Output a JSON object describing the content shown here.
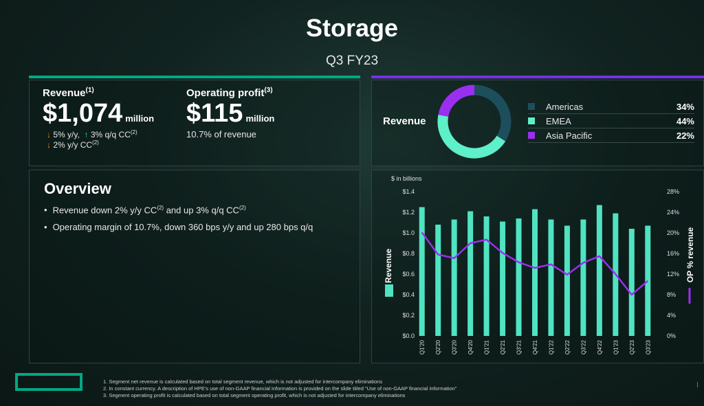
{
  "title": "Storage",
  "subtitle": "Q3 FY23",
  "revenue": {
    "label": "Revenue",
    "label_sup": "(1)",
    "value": "$1,074",
    "unit": "million",
    "delta_yy": "5% y/y,",
    "delta_qq": "3% q/q CC",
    "delta_qq_sup": "(2)",
    "delta_cc": "2% y/y CC",
    "delta_cc_sup": "(2)"
  },
  "operating_profit": {
    "label": "Operating profit",
    "label_sup": "(3)",
    "value": "$115",
    "unit": "million",
    "note": "10.7% of revenue"
  },
  "overview": {
    "title": "Overview",
    "bullet1_a": "Revenue down 2% y/y CC",
    "bullet1_sup1": "(2)",
    "bullet1_b": " and up 3% q/q CC",
    "bullet1_sup2": "(2)",
    "bullet2": "Operating margin of 10.7%, down 360 bps y/y and up 280 bps q/q"
  },
  "revenue_mix": {
    "label": "Revenue",
    "items": [
      {
        "name": "Americas",
        "pct_label": "34%",
        "value": 34,
        "color": "#1d4e5c"
      },
      {
        "name": "EMEA",
        "pct_label": "44%",
        "value": 44,
        "color": "#5ef0c8"
      },
      {
        "name": "Asia Pacific",
        "pct_label": "22%",
        "value": 22,
        "color": "#9b2ff0"
      }
    ]
  },
  "colors": {
    "accent_green": "#01a982",
    "accent_purple": "#7630ea",
    "bar": "#4fe3c1",
    "line": "#9b2ff0"
  },
  "chart_data": [
    {
      "type": "pie",
      "labels": [
        "Americas",
        "EMEA",
        "Asia Pacific"
      ],
      "values": [
        34,
        44,
        22
      ]
    },
    {
      "type": "bar",
      "unit_note": "$ in billions",
      "ylabel": "Revenue",
      "y2label": "OP % revenue",
      "categories": [
        "Q1'20",
        "Q2'20",
        "Q3'20",
        "Q4'20",
        "Q1'21",
        "Q2'21",
        "Q3'21",
        "Q4'21",
        "Q1'22",
        "Q2'22",
        "Q3'22",
        "Q4'22",
        "Q1'23",
        "Q2'23",
        "Q3'23"
      ],
      "series": [
        {
          "name": "Revenue",
          "type": "bar",
          "axis": "left",
          "values": [
            1.25,
            1.08,
            1.13,
            1.21,
            1.16,
            1.11,
            1.14,
            1.23,
            1.13,
            1.07,
            1.13,
            1.27,
            1.19,
            1.04,
            1.07
          ]
        },
        {
          "name": "OP % revenue",
          "type": "line",
          "axis": "right",
          "values": [
            20.1,
            15.8,
            15.1,
            18.0,
            18.7,
            16.1,
            14.3,
            13.2,
            13.9,
            11.9,
            14.2,
            15.5,
            12.0,
            8.0,
            10.7
          ]
        }
      ],
      "ylim": [
        0,
        1.4
      ],
      "y_ticks": [
        "$0.0",
        "$0.2",
        "$0.4",
        "$0.6",
        "$0.8",
        "$1.0",
        "$1.2",
        "$1.4"
      ],
      "y2lim": [
        0,
        28
      ],
      "y2_ticks": [
        "0%",
        "4%",
        "8%",
        "12%",
        "16%",
        "20%",
        "24%",
        "28%"
      ],
      "grid": false
    }
  ]
}
